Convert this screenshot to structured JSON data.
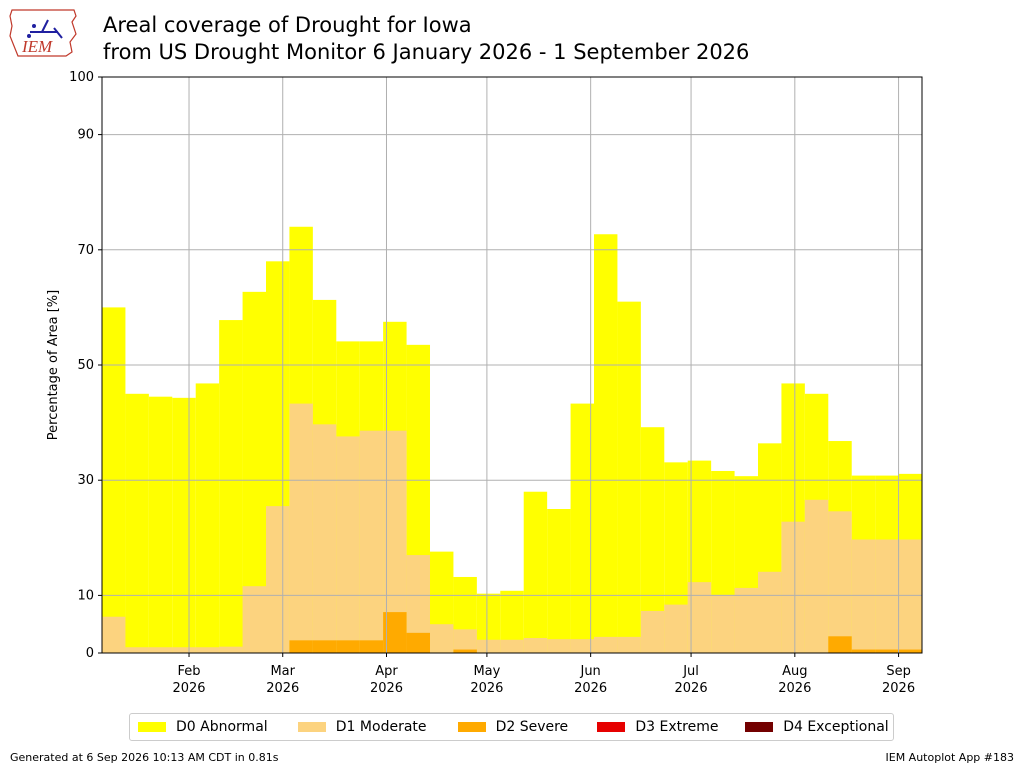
{
  "header": {
    "logo_text": "IEM",
    "title_line1": "Areal coverage of Drought for Iowa",
    "title_line2": "from US Drought Monitor 6 January 2026 - 1 September 2026"
  },
  "footer": {
    "generated": "Generated at 6 Sep 2026 10:13 AM CDT in 0.81s",
    "app": "IEM Autoplot App #183"
  },
  "chart_data": {
    "type": "area",
    "title": "Areal coverage of Drought for Iowa",
    "subtitle": "from US Drought Monitor 6 January 2026 - 1 September 2026",
    "ylabel": "Percentage of Area [%]",
    "xlabel": "",
    "ylim": [
      0,
      100
    ],
    "yticks": [
      0,
      10,
      30,
      50,
      70,
      90,
      100
    ],
    "grid": true,
    "legend_position": "bottom",
    "x_range": [
      "2026-01-06",
      "2026-09-08"
    ],
    "x_ticks": [
      {
        "date": "2026-02-01",
        "label1": "Feb",
        "label2": "2026"
      },
      {
        "date": "2026-03-01",
        "label1": "Mar",
        "label2": "2026"
      },
      {
        "date": "2026-04-01",
        "label1": "Apr",
        "label2": "2026"
      },
      {
        "date": "2026-05-01",
        "label1": "May",
        "label2": "2026"
      },
      {
        "date": "2026-06-01",
        "label1": "Jun",
        "label2": "2026"
      },
      {
        "date": "2026-07-01",
        "label1": "Jul",
        "label2": "2026"
      },
      {
        "date": "2026-08-01",
        "label1": "Aug",
        "label2": "2026"
      },
      {
        "date": "2026-09-01",
        "label1": "Sep",
        "label2": "2026"
      }
    ],
    "x": [
      "2026-01-06",
      "2026-01-13",
      "2026-01-20",
      "2026-01-27",
      "2026-02-03",
      "2026-02-10",
      "2026-02-17",
      "2026-02-24",
      "2026-03-03",
      "2026-03-10",
      "2026-03-17",
      "2026-03-24",
      "2026-03-31",
      "2026-04-07",
      "2026-04-14",
      "2026-04-21",
      "2026-04-28",
      "2026-05-05",
      "2026-05-12",
      "2026-05-19",
      "2026-05-26",
      "2026-06-02",
      "2026-06-09",
      "2026-06-16",
      "2026-06-23",
      "2026-06-30",
      "2026-07-07",
      "2026-07-14",
      "2026-07-21",
      "2026-07-28",
      "2026-08-04",
      "2026-08-11",
      "2026-08-18",
      "2026-08-25",
      "2026-09-01"
    ],
    "series": [
      {
        "name": "D0 Abnormal",
        "color": "#ffff00",
        "values": [
          60.0,
          45.0,
          44.5,
          44.3,
          46.8,
          57.8,
          62.7,
          68.0,
          74.0,
          61.3,
          54.1,
          54.1,
          57.5,
          53.5,
          17.6,
          13.2,
          10.3,
          10.8,
          28.0,
          25.0,
          43.3,
          72.7,
          61.0,
          39.2,
          33.1,
          33.4,
          31.6,
          30.7,
          36.4,
          46.8,
          45.0,
          36.8,
          30.8,
          30.8,
          31.1
        ]
      },
      {
        "name": "D1 Moderate",
        "color": "#fcd37f",
        "values": [
          6.3,
          1.0,
          1.0,
          1.0,
          1.0,
          1.1,
          11.6,
          25.5,
          43.3,
          39.7,
          37.6,
          38.6,
          38.6,
          17.0,
          5.0,
          4.1,
          2.3,
          2.3,
          2.6,
          2.4,
          2.4,
          2.8,
          2.8,
          7.3,
          8.4,
          12.3,
          10.1,
          11.3,
          14.1,
          22.8,
          26.6,
          24.6,
          19.7,
          19.7,
          19.7
        ]
      },
      {
        "name": "D2 Severe",
        "color": "#ffaa00",
        "values": [
          0,
          0,
          0,
          0,
          0,
          0,
          0,
          0,
          2.2,
          2.2,
          2.2,
          2.2,
          7.1,
          3.5,
          0,
          0.6,
          0,
          0,
          0,
          0,
          0,
          0,
          0,
          0,
          0,
          0,
          0,
          0,
          0,
          0,
          0,
          2.9,
          0.6,
          0.6,
          0.6
        ]
      },
      {
        "name": "D3 Extreme",
        "color": "#e60000",
        "values": [
          0,
          0,
          0,
          0,
          0,
          0,
          0,
          0,
          0,
          0,
          0,
          0,
          0,
          0,
          0,
          0,
          0,
          0,
          0,
          0,
          0,
          0,
          0,
          0,
          0,
          0,
          0,
          0,
          0,
          0,
          0,
          0,
          0,
          0,
          0
        ]
      },
      {
        "name": "D4 Exceptional",
        "color": "#730000",
        "values": [
          0,
          0,
          0,
          0,
          0,
          0,
          0,
          0,
          0,
          0,
          0,
          0,
          0,
          0,
          0,
          0,
          0,
          0,
          0,
          0,
          0,
          0,
          0,
          0,
          0,
          0,
          0,
          0,
          0,
          0,
          0,
          0,
          0,
          0,
          0
        ]
      }
    ]
  }
}
